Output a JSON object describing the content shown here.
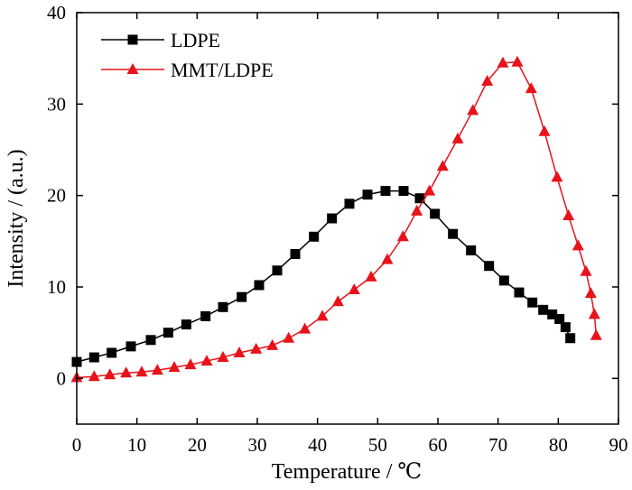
{
  "chart_data": {
    "type": "line",
    "title": "",
    "xlabel": "Temperature / ℃",
    "ylabel": "Intensity / (a.u.)",
    "xlim": [
      0,
      90
    ],
    "ylim": [
      -5,
      40
    ],
    "xticks": [
      0,
      10,
      20,
      30,
      40,
      50,
      60,
      70,
      80,
      90
    ],
    "yticks": [
      0,
      10,
      20,
      30,
      40
    ],
    "grid": false,
    "legend_position": "top-left",
    "series": [
      {
        "name": "LDPE",
        "color": "#000000",
        "marker": "square",
        "x": [
          0,
          2.9,
          5.8,
          9,
          12.3,
          15.2,
          18.2,
          21.4,
          24.3,
          27.4,
          30.3,
          33.3,
          36.3,
          39.4,
          42.4,
          45.3,
          48.3,
          51.3,
          54.3,
          57,
          59.5,
          62.5,
          65.5,
          68.5,
          71,
          73.5,
          75.7,
          77.5,
          79,
          80.2,
          81.2,
          82
        ],
        "y": [
          1.8,
          2.3,
          2.8,
          3.5,
          4.2,
          5.0,
          5.9,
          6.8,
          7.8,
          8.9,
          10.2,
          11.8,
          13.6,
          15.5,
          17.5,
          19.1,
          20.1,
          20.5,
          20.5,
          19.7,
          18.0,
          15.8,
          14.0,
          12.3,
          10.7,
          9.4,
          8.3,
          7.5,
          7.0,
          6.5,
          5.6,
          4.4
        ]
      },
      {
        "name": "MMT/LDPE",
        "color": "#e8121a",
        "marker": "triangle",
        "x": [
          0,
          2.9,
          5.5,
          8.2,
          10.8,
          13.4,
          16.2,
          18.9,
          21.6,
          24.3,
          27.0,
          29.8,
          32.5,
          35.2,
          37.9,
          40.8,
          43.4,
          46.1,
          48.9,
          51.6,
          54.2,
          56.5,
          58.6,
          60.8,
          63.3,
          65.8,
          68.2,
          70.8,
          73.2,
          75.5,
          77.7,
          79.8,
          81.7,
          83.3,
          84.6,
          85.4,
          86.0,
          86.3
        ],
        "y": [
          0.1,
          0.2,
          0.4,
          0.6,
          0.7,
          0.9,
          1.2,
          1.5,
          1.9,
          2.3,
          2.8,
          3.2,
          3.6,
          4.4,
          5.4,
          6.8,
          8.4,
          9.7,
          11.1,
          13.0,
          15.5,
          18.3,
          20.5,
          23.2,
          26.2,
          29.3,
          32.5,
          34.5,
          34.6,
          31.7,
          27.0,
          22.0,
          17.8,
          14.5,
          11.7,
          9.3,
          7.0,
          4.7
        ]
      }
    ]
  }
}
